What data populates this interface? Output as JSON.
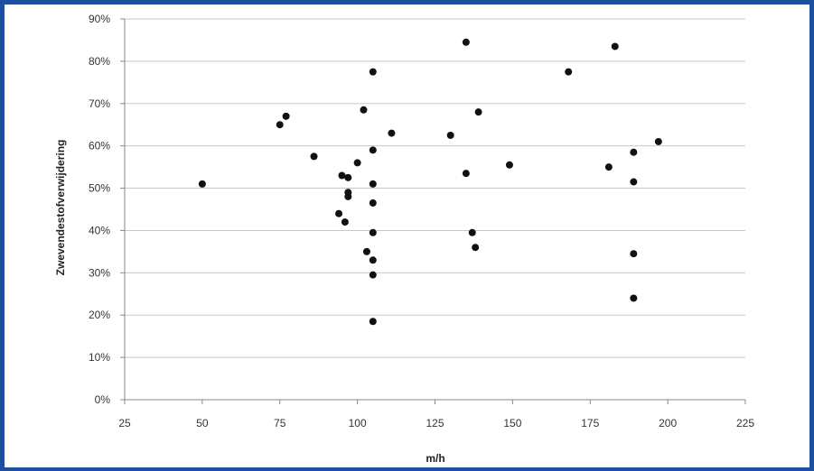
{
  "chart_data": {
    "type": "scatter",
    "title": "",
    "xlabel": "m/h",
    "ylabel": "Zwevendestofverwijdering",
    "xlim": [
      25,
      225
    ],
    "ylim": [
      0,
      90
    ],
    "x_ticks": [
      25,
      50,
      75,
      100,
      125,
      150,
      175,
      200,
      225
    ],
    "y_ticks": [
      0,
      10,
      20,
      30,
      40,
      50,
      60,
      70,
      80,
      90
    ],
    "x_tick_labels": [
      "25",
      "50",
      "75",
      "100",
      "125",
      "150",
      "175",
      "200",
      "225"
    ],
    "y_tick_labels": [
      "0%",
      "10%",
      "20%",
      "30%",
      "40%",
      "50%",
      "60%",
      "70%",
      "80%",
      "90%"
    ],
    "grid": "horizontal",
    "legend": "none",
    "colors": {
      "marker": "#111111",
      "grid": "#c8c8c8",
      "frame": "#1f4f9f"
    },
    "points": [
      {
        "x": 50,
        "y": 51
      },
      {
        "x": 75,
        "y": 65
      },
      {
        "x": 77,
        "y": 67
      },
      {
        "x": 86,
        "y": 57.5
      },
      {
        "x": 94,
        "y": 44
      },
      {
        "x": 95,
        "y": 53
      },
      {
        "x": 96,
        "y": 42
      },
      {
        "x": 97,
        "y": 52.5
      },
      {
        "x": 97,
        "y": 49
      },
      {
        "x": 97,
        "y": 48
      },
      {
        "x": 100,
        "y": 56
      },
      {
        "x": 102,
        "y": 68.5
      },
      {
        "x": 103,
        "y": 35
      },
      {
        "x": 105,
        "y": 77.5
      },
      {
        "x": 105,
        "y": 59
      },
      {
        "x": 105,
        "y": 51
      },
      {
        "x": 105,
        "y": 46.5
      },
      {
        "x": 105,
        "y": 39.5
      },
      {
        "x": 105,
        "y": 33
      },
      {
        "x": 105,
        "y": 29.5
      },
      {
        "x": 105,
        "y": 18.5
      },
      {
        "x": 111,
        "y": 63
      },
      {
        "x": 130,
        "y": 62.5
      },
      {
        "x": 135,
        "y": 84.5
      },
      {
        "x": 135,
        "y": 53.5
      },
      {
        "x": 137,
        "y": 39.5
      },
      {
        "x": 138,
        "y": 36
      },
      {
        "x": 139,
        "y": 68
      },
      {
        "x": 149,
        "y": 55.5
      },
      {
        "x": 168,
        "y": 77.5
      },
      {
        "x": 181,
        "y": 55
      },
      {
        "x": 183,
        "y": 83.5
      },
      {
        "x": 189,
        "y": 58.5
      },
      {
        "x": 189,
        "y": 51.5
      },
      {
        "x": 189,
        "y": 34.5
      },
      {
        "x": 189,
        "y": 24
      },
      {
        "x": 197,
        "y": 61
      }
    ]
  }
}
